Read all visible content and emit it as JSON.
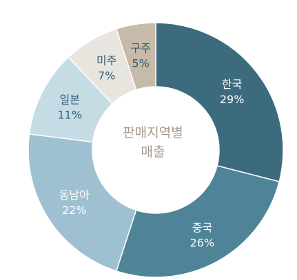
{
  "chart_data": {
    "type": "pie",
    "donut": true,
    "title_lines": [
      "판매지역별",
      "매출"
    ],
    "start_angle_deg": 0,
    "direction": "clockwise",
    "legend": "none",
    "slices": [
      {
        "label": "한국",
        "value": 29,
        "value_label": "29%",
        "color": "#3d6b7e",
        "text_color": "#ffffff"
      },
      {
        "label": "중국",
        "value": 26,
        "value_label": "26%",
        "color": "#4f8498",
        "text_color": "#ffffff"
      },
      {
        "label": "동남아",
        "value": 22,
        "value_label": "22%",
        "color": "#9fc0d0",
        "text_color": "#ffffff"
      },
      {
        "label": "일본",
        "value": 11,
        "value_label": "11%",
        "color": "#c6dce5",
        "text_color": "#2f5f75"
      },
      {
        "label": "미주",
        "value": 7,
        "value_label": "7%",
        "color": "#e8e4de",
        "text_color": "#2f5f75"
      },
      {
        "label": "구주",
        "value": 5,
        "value_label": "5%",
        "color": "#c7baa8",
        "text_color": "#2f5f75"
      }
    ]
  }
}
